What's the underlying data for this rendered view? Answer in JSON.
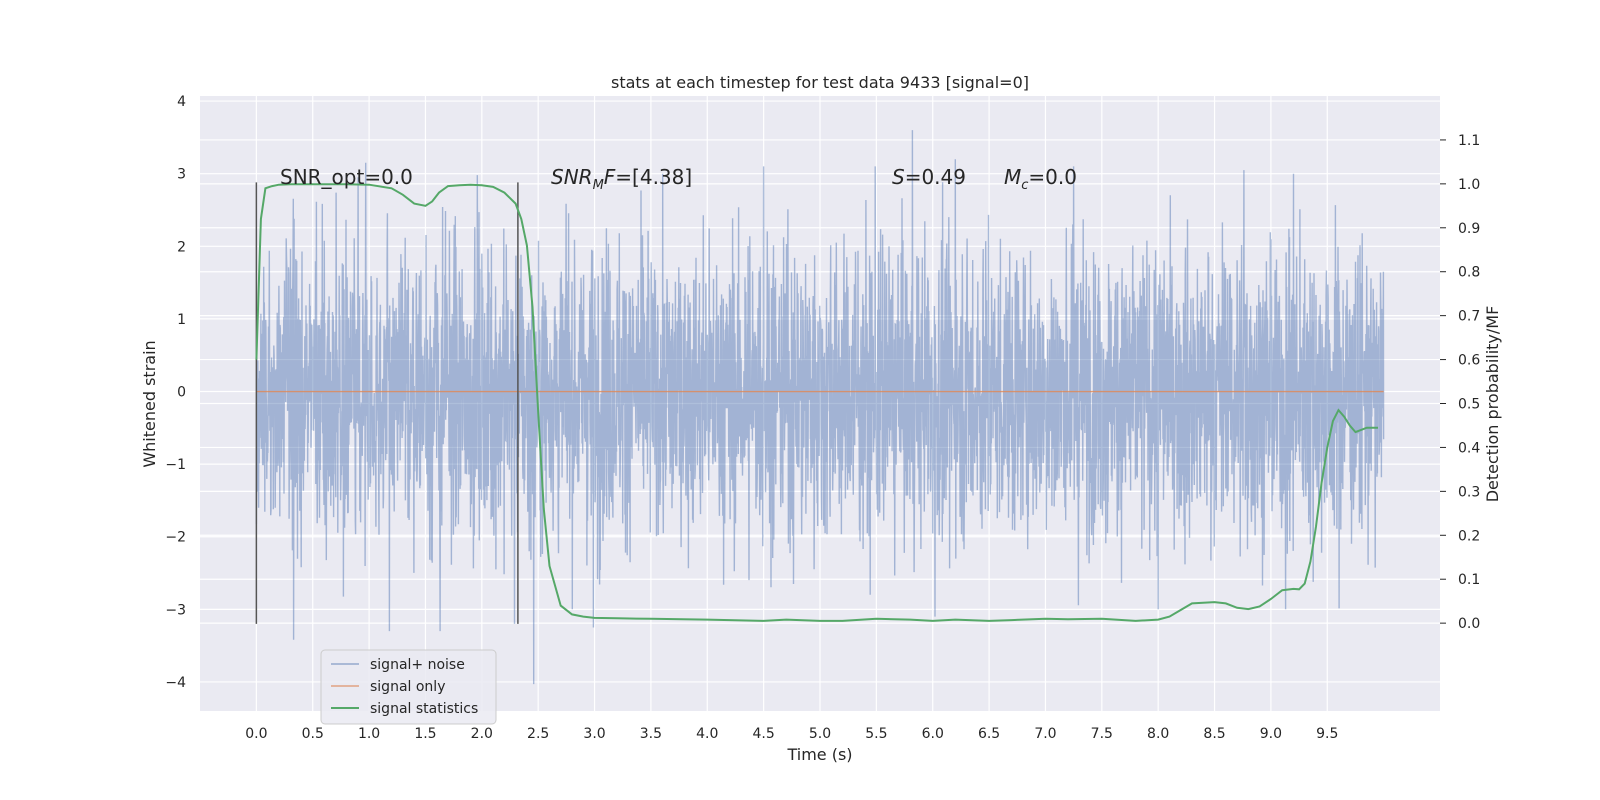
{
  "chart_data": {
    "type": "line",
    "title": "stats at each timestep for test data 9433 [signal=0]",
    "xlabel": "Time (s)",
    "ylabel": "Whitened strain",
    "ylabel_right": "Detection probability/MF",
    "xlim": [
      -0.5,
      10.5
    ],
    "ylim": [
      -4.4,
      4.07
    ],
    "ylim_right": [
      -0.2,
      1.2
    ],
    "x_ticks": [
      "0.0",
      "0.5",
      "1.0",
      "1.5",
      "2.0",
      "2.5",
      "3.0",
      "3.5",
      "4.0",
      "4.5",
      "5.0",
      "5.5",
      "6.0",
      "6.5",
      "7.0",
      "7.5",
      "8.0",
      "8.5",
      "9.0",
      "9.5"
    ],
    "y_ticks": [
      "−4",
      "−3",
      "−2",
      "−1",
      "0",
      "1",
      "2",
      "3",
      "4"
    ],
    "y_right_ticks": [
      "0.0",
      "0.1",
      "0.2",
      "0.3",
      "0.4",
      "0.5",
      "0.6",
      "0.7",
      "0.8",
      "0.9",
      "1.0",
      "1.1"
    ],
    "grid": true,
    "legend_position": "lower-left",
    "colors": {
      "noise": "#4c72b0",
      "signal": "#dd8452",
      "stats": "#55a868",
      "background": "#eaeaf2"
    },
    "annotations": [
      {
        "text": "SNR_opt=0.0"
      },
      {
        "text": "[4.38]",
        "prefix_math": "SNR",
        "subscript": "M",
        "suffix": "F="
      },
      {
        "text": "=0.49",
        "math": "S"
      },
      {
        "text": "=0.0",
        "math": "M",
        "subscript": "c"
      }
    ],
    "vlines": [
      {
        "x": 0.0,
        "ymin": -3.2,
        "ymax": 2.88
      },
      {
        "x": 2.32,
        "ymin": -3.2,
        "ymax": 2.88
      }
    ],
    "series": [
      {
        "name": "signal+ noise",
        "axis": "left",
        "x_range": [
          0.0,
          10.0
        ],
        "std": 1.0,
        "peaks": [
          [
            0.33,
            -3.42
          ],
          [
            0.97,
            3.15
          ],
          [
            1.18,
            -3.3
          ],
          [
            1.63,
            -3.3
          ],
          [
            1.96,
            2.98
          ],
          [
            2.29,
            -3.2
          ],
          [
            2.46,
            -4.03
          ],
          [
            2.99,
            -3.25
          ],
          [
            4.5,
            3.1
          ],
          [
            5.49,
            3.1
          ],
          [
            5.82,
            3.6
          ],
          [
            6.02,
            -3.1
          ],
          [
            6.2,
            3.2
          ],
          [
            7.25,
            3.1
          ],
          [
            8.0,
            -3.0
          ],
          [
            8.76,
            3.05
          ],
          [
            9.13,
            -3.0
          ],
          [
            9.2,
            3.0
          ]
        ]
      },
      {
        "name": "signal only",
        "axis": "left",
        "x": [
          0.0,
          10.0
        ],
        "y": [
          0.0,
          0.0
        ]
      },
      {
        "name": "signal statistics",
        "axis": "right",
        "x": [
          0.0,
          0.04,
          0.08,
          0.14,
          0.2,
          0.3,
          0.4,
          0.6,
          0.8,
          1.0,
          1.2,
          1.3,
          1.4,
          1.5,
          1.56,
          1.62,
          1.7,
          1.8,
          1.9,
          2.0,
          2.1,
          2.2,
          2.3,
          2.35,
          2.4,
          2.45,
          2.5,
          2.55,
          2.6,
          2.7,
          2.8,
          2.9,
          3.0,
          3.2,
          3.5,
          4.0,
          4.5,
          4.7,
          5.0,
          5.2,
          5.5,
          5.8,
          6.0,
          6.2,
          6.5,
          6.7,
          7.0,
          7.2,
          7.5,
          7.8,
          8.0,
          8.1,
          8.2,
          8.3,
          8.5,
          8.6,
          8.7,
          8.8,
          8.9,
          9.0,
          9.1,
          9.2,
          9.25,
          9.3,
          9.35,
          9.4,
          9.45,
          9.5,
          9.55,
          9.6,
          9.65,
          9.7,
          9.75,
          9.8,
          9.85,
          9.9,
          9.95
        ],
        "y": [
          0.6,
          0.92,
          0.99,
          0.995,
          0.998,
          0.999,
          0.999,
          0.999,
          0.999,
          0.998,
          0.99,
          0.975,
          0.955,
          0.95,
          0.96,
          0.98,
          0.995,
          0.997,
          0.998,
          0.997,
          0.993,
          0.98,
          0.955,
          0.92,
          0.86,
          0.72,
          0.48,
          0.26,
          0.13,
          0.04,
          0.02,
          0.015,
          0.012,
          0.011,
          0.01,
          0.008,
          0.005,
          0.008,
          0.005,
          0.005,
          0.01,
          0.008,
          0.005,
          0.008,
          0.005,
          0.007,
          0.01,
          0.009,
          0.01,
          0.005,
          0.008,
          0.015,
          0.03,
          0.045,
          0.048,
          0.045,
          0.035,
          0.032,
          0.038,
          0.055,
          0.075,
          0.078,
          0.077,
          0.09,
          0.14,
          0.22,
          0.32,
          0.4,
          0.46,
          0.485,
          0.47,
          0.45,
          0.435,
          0.44,
          0.445,
          0.445,
          0.445
        ]
      }
    ]
  }
}
